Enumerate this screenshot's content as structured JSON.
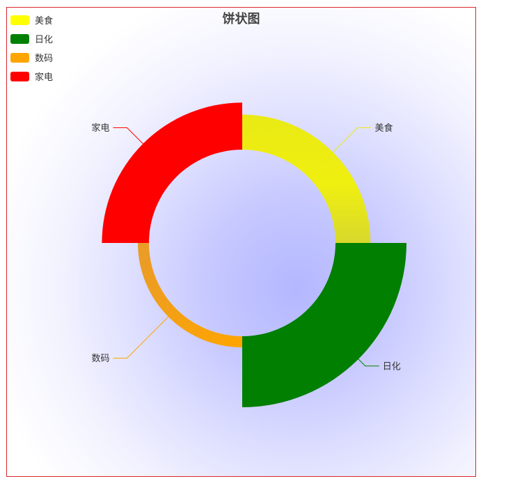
{
  "chart_data": {
    "type": "pie",
    "variant": "rose-ring",
    "title": "饼状图",
    "legend_position": "top-left",
    "slices": [
      {
        "name": "美食",
        "value": 30,
        "color": "#eaea15",
        "legend_color": "#ffff00"
      },
      {
        "name": "日化",
        "value": 60,
        "color": "#007f00",
        "legend_color": "#008000"
      },
      {
        "name": "数码",
        "value": 10,
        "color": "#ffa500",
        "legend_color": "#ffa500"
      },
      {
        "name": "家电",
        "value": 40,
        "color": "#ff0000",
        "legend_color": "#ff0000"
      }
    ]
  }
}
